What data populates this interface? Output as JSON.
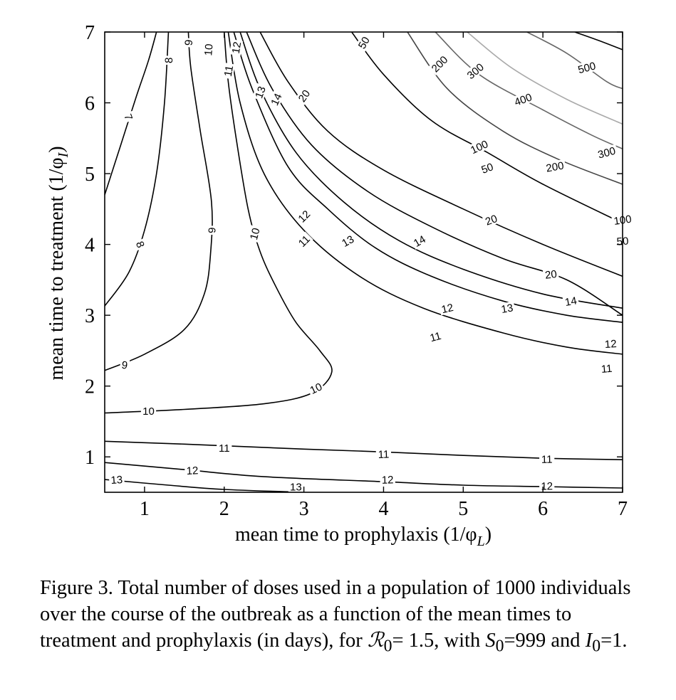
{
  "chart_data": {
    "type": "contour",
    "xlabel": "mean time to prophylaxis (1/φ",
    "xlabel_sub": "L",
    "xlabel_end": ")",
    "ylabel": "mean time to treatment (1/φ",
    "ylabel_sub": "I",
    "ylabel_end": ")",
    "xlim": [
      0.5,
      7
    ],
    "ylim": [
      0.5,
      7
    ],
    "xticks": [
      1,
      2,
      3,
      4,
      5,
      6,
      7
    ],
    "yticks": [
      1,
      2,
      3,
      4,
      5,
      6,
      7
    ],
    "contours": [
      {
        "level": "7",
        "color": "#000000",
        "points": [
          [
            0.5,
            4.7
          ],
          [
            0.7,
            5.4
          ],
          [
            0.9,
            6.1
          ],
          [
            1.05,
            6.6
          ],
          [
            1.15,
            7.0
          ]
        ],
        "labels": [
          [
            0.8,
            5.8,
            70
          ]
        ]
      },
      {
        "level": "8",
        "color": "#000000",
        "points": [
          [
            0.5,
            3.13
          ],
          [
            0.8,
            3.6
          ],
          [
            1.0,
            4.2
          ],
          [
            1.15,
            5.0
          ],
          [
            1.25,
            6.0
          ],
          [
            1.3,
            7.0
          ]
        ],
        "labels": [
          [
            0.95,
            4.0,
            68
          ],
          [
            1.3,
            6.6,
            -88
          ]
        ]
      },
      {
        "level": "9",
        "color": "#000000",
        "points": [
          [
            0.5,
            2.22
          ],
          [
            1.0,
            2.45
          ],
          [
            1.5,
            2.8
          ],
          [
            1.75,
            3.3
          ],
          [
            1.83,
            3.9
          ],
          [
            1.84,
            4.6
          ],
          [
            1.7,
            5.6
          ],
          [
            1.58,
            6.5
          ],
          [
            1.55,
            7.0
          ]
        ],
        "labels": [
          [
            0.75,
            2.3,
            8
          ],
          [
            1.84,
            4.2,
            -90
          ],
          [
            1.55,
            6.85,
            -85
          ]
        ]
      },
      {
        "level": "10",
        "color": "#000000",
        "points": [
          [
            0.5,
            1.62
          ],
          [
            1.5,
            1.67
          ],
          [
            2.5,
            1.75
          ],
          [
            3.1,
            1.9
          ],
          [
            3.35,
            2.2
          ],
          [
            3.2,
            2.5
          ],
          [
            2.9,
            2.9
          ],
          [
            2.65,
            3.4
          ],
          [
            2.45,
            3.9
          ],
          [
            2.3,
            4.5
          ],
          [
            2.15,
            5.5
          ],
          [
            2.05,
            6.3
          ],
          [
            2.0,
            7.0
          ]
        ],
        "labels": [
          [
            1.05,
            1.65,
            0
          ],
          [
            3.15,
            1.97,
            -25
          ],
          [
            2.38,
            4.15,
            -75
          ],
          [
            1.8,
            6.75,
            -85
          ]
        ]
      },
      {
        "level": "11",
        "color": "#000000",
        "points": [
          [
            0.5,
            1.22
          ],
          [
            1.5,
            1.18
          ],
          [
            3,
            1.11
          ],
          [
            4,
            1.07
          ],
          [
            5,
            1.02
          ],
          [
            6,
            0.98
          ],
          [
            7,
            0.96
          ]
        ],
        "labels": [
          [
            2.0,
            1.13,
            0
          ],
          [
            4.0,
            1.04,
            -2
          ],
          [
            6.05,
            0.97,
            -1
          ]
        ]
      },
      {
        "level": "11",
        "color": "#000000",
        "points": [
          [
            2.05,
            7.0
          ],
          [
            2.2,
            6.0
          ],
          [
            2.5,
            5.0
          ],
          [
            3.0,
            4.2
          ],
          [
            3.7,
            3.55
          ],
          [
            4.5,
            3.1
          ],
          [
            5.5,
            2.75
          ],
          [
            6.3,
            2.55
          ],
          [
            7.0,
            2.45
          ]
        ],
        "labels": [
          [
            2.05,
            6.45,
            -80
          ],
          [
            3.0,
            4.05,
            -45
          ],
          [
            4.65,
            2.7,
            -15
          ],
          [
            6.8,
            2.25,
            -5
          ]
        ]
      },
      {
        "level": "12",
        "color": "#000000",
        "points": [
          [
            0.5,
            0.92
          ],
          [
            1.5,
            0.82
          ],
          [
            2.5,
            0.72
          ],
          [
            4,
            0.65
          ],
          [
            5,
            0.6
          ],
          [
            6,
            0.58
          ],
          [
            7,
            0.56
          ]
        ],
        "labels": [
          [
            1.6,
            0.81,
            -3
          ],
          [
            4.05,
            0.68,
            -2
          ],
          [
            6.05,
            0.59,
            -1
          ]
        ]
      },
      {
        "level": "12",
        "color": "#000000",
        "points": [
          [
            2.12,
            7.0
          ],
          [
            2.35,
            6.2
          ],
          [
            2.8,
            5.1
          ],
          [
            3.3,
            4.5
          ],
          [
            3.9,
            3.95
          ],
          [
            4.6,
            3.55
          ],
          [
            5.5,
            3.2
          ],
          [
            6.3,
            3.0
          ],
          [
            7.0,
            2.9
          ]
        ],
        "labels": [
          [
            2.15,
            6.78,
            -80
          ],
          [
            3.0,
            4.4,
            -45
          ],
          [
            4.8,
            3.1,
            -13
          ],
          [
            6.85,
            2.6,
            -4
          ]
        ]
      },
      {
        "level": "13",
        "color": "#000000",
        "points": [
          [
            0.5,
            0.68
          ],
          [
            1.3,
            0.6
          ],
          [
            2.0,
            0.54
          ],
          [
            3.0,
            0.5
          ]
        ],
        "labels": [
          [
            0.65,
            0.68,
            -4
          ],
          [
            2.9,
            0.58,
            0
          ]
        ]
      },
      {
        "level": "13",
        "color": "#000000",
        "points": [
          [
            2.2,
            7.0
          ],
          [
            2.45,
            6.2
          ],
          [
            2.9,
            5.3
          ],
          [
            3.5,
            4.6
          ],
          [
            4.2,
            4.05
          ],
          [
            5.0,
            3.65
          ],
          [
            6.0,
            3.3
          ],
          [
            7.0,
            3.1
          ]
        ],
        "labels": [
          [
            2.45,
            6.15,
            -70
          ],
          [
            3.55,
            4.05,
            -30
          ],
          [
            5.55,
            3.1,
            -10
          ]
        ]
      },
      {
        "level": "14",
        "color": "#000000",
        "points": [
          [
            2.28,
            7.0
          ],
          [
            2.6,
            6.2
          ],
          [
            3.1,
            5.4
          ],
          [
            3.8,
            4.75
          ],
          [
            4.6,
            4.25
          ],
          [
            5.5,
            3.8
          ],
          [
            6.3,
            3.5
          ],
          [
            7.0,
            3.0
          ]
        ],
        "labels": [
          [
            2.65,
            6.05,
            -65
          ],
          [
            4.45,
            4.05,
            -30
          ],
          [
            6.35,
            3.2,
            -10
          ]
        ]
      },
      {
        "level": "20",
        "color": "#000000",
        "points": [
          [
            2.45,
            7.0
          ],
          [
            2.8,
            6.3
          ],
          [
            3.3,
            5.6
          ],
          [
            4.0,
            5.05
          ],
          [
            5.0,
            4.5
          ],
          [
            6.0,
            4.0
          ],
          [
            7.0,
            3.55
          ]
        ],
        "labels": [
          [
            3.0,
            6.1,
            -55
          ],
          [
            5.35,
            4.35,
            -20
          ],
          [
            6.1,
            3.58,
            -7
          ]
        ]
      },
      {
        "level": "50",
        "color": "#000000",
        "points": [
          [
            3.6,
            7.0
          ],
          [
            4.0,
            6.4
          ],
          [
            4.6,
            5.75
          ],
          [
            5.3,
            5.3
          ],
          [
            6.0,
            4.85
          ],
          [
            7.0,
            4.3
          ]
        ],
        "labels": [
          [
            3.75,
            6.85,
            -60
          ],
          [
            5.3,
            5.08,
            -20
          ],
          [
            7.0,
            4.05,
            -5
          ]
        ]
      },
      {
        "level": "100",
        "color": "#444444",
        "points": [
          [
            4.3,
            7.0
          ],
          [
            4.8,
            6.2
          ],
          [
            5.5,
            5.6
          ],
          [
            6.2,
            5.2
          ],
          [
            7.0,
            4.85
          ]
        ],
        "labels": [
          [
            5.2,
            5.38,
            -25
          ],
          [
            7.0,
            4.35,
            -8
          ]
        ]
      },
      {
        "level": "200",
        "color": "#666666",
        "points": [
          [
            4.65,
            7.0
          ],
          [
            5.2,
            6.4
          ],
          [
            6.0,
            5.9
          ],
          [
            6.6,
            5.55
          ],
          [
            7.0,
            5.35
          ]
        ],
        "labels": [
          [
            4.7,
            6.55,
            -45
          ],
          [
            6.15,
            5.1,
            -10
          ]
        ]
      },
      {
        "level": "300",
        "color": "#aaaaaa",
        "points": [
          [
            5.05,
            7.0
          ],
          [
            5.6,
            6.5
          ],
          [
            6.3,
            6.05
          ],
          [
            7.0,
            5.7
          ]
        ],
        "labels": [
          [
            5.15,
            6.45,
            -40
          ],
          [
            6.8,
            5.3,
            -15
          ]
        ]
      },
      {
        "level": "400",
        "color": "#666666",
        "points": [
          [
            5.8,
            7.0
          ],
          [
            6.3,
            6.7
          ],
          [
            6.8,
            6.3
          ],
          [
            7.0,
            6.2
          ]
        ],
        "labels": [
          [
            5.75,
            6.05,
            -20
          ]
        ]
      },
      {
        "level": "500",
        "color": "#000000",
        "points": [
          [
            6.4,
            7.0
          ],
          [
            6.7,
            6.88
          ],
          [
            7.0,
            6.75
          ]
        ],
        "labels": [
          [
            6.55,
            6.5,
            -15
          ]
        ]
      }
    ]
  },
  "caption": {
    "text_a": "Figure 3. Total number of doses used in a population of 1000 individuals over the course of the outbreak as a function of the mean times to treatment and prophylaxis (in days), for ",
    "r_symbol": "ℛ",
    "r_sub": "0",
    "text_b": "= 1.5, with ",
    "s_symbol": "S",
    "s_sub": "0",
    "text_c": "=999 and ",
    "i_symbol": "I",
    "i_sub": "0",
    "text_d": "=1."
  }
}
